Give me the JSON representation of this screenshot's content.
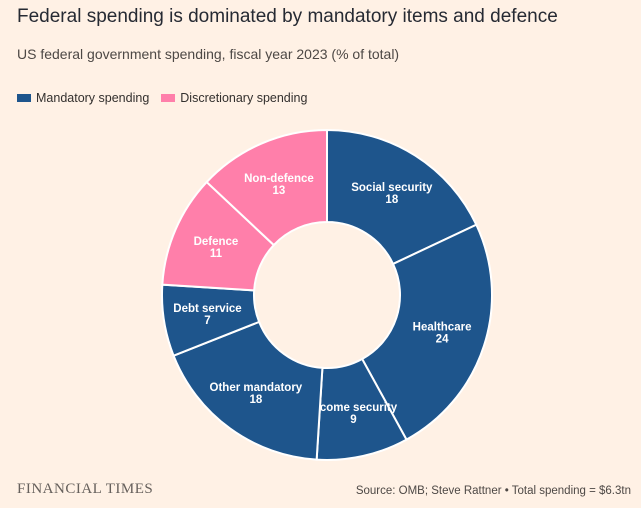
{
  "chart_data": {
    "type": "pie",
    "title": "Federal spending is dominated by mandatory items and defence",
    "subtitle": "US federal government spending, fiscal year 2023 (% of total)",
    "legend": [
      {
        "name": "Mandatory spending",
        "color": "#1e558c"
      },
      {
        "name": "Discretionary spending",
        "color": "#ff7faa"
      }
    ],
    "slices": [
      {
        "label": "Social security",
        "value": 18,
        "group": "Mandatory spending",
        "color": "#1e558c"
      },
      {
        "label": "Healthcare",
        "value": 24,
        "group": "Mandatory spending",
        "color": "#1e558c"
      },
      {
        "label": "Income security",
        "value": 9,
        "group": "Mandatory spending",
        "color": "#1e558c"
      },
      {
        "label": "Other mandatory",
        "value": 18,
        "group": "Mandatory spending",
        "color": "#1e558c"
      },
      {
        "label": "Debt service",
        "value": 7,
        "group": "Mandatory spending",
        "color": "#1e558c"
      },
      {
        "label": "Defence",
        "value": 11,
        "group": "Discretionary spending",
        "color": "#ff7faa"
      },
      {
        "label": "Non-defence",
        "value": 13,
        "group": "Discretionary spending",
        "color": "#ff7faa"
      }
    ],
    "legend_position": "top-left"
  },
  "footer": {
    "logo": "FINANCIAL TIMES",
    "source": "Source: OMB; Steve Rattner • Total spending = $6.3tn"
  },
  "colors": {
    "background": "#fff1e5",
    "mandatory": "#1e558c",
    "discretionary": "#ff7faa"
  }
}
